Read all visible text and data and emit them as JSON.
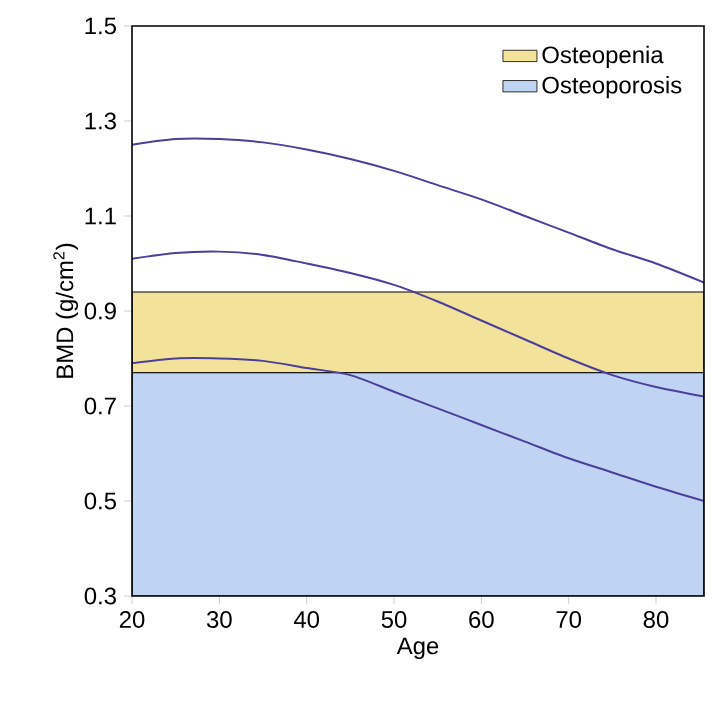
{
  "chart_data": {
    "type": "line",
    "xlabel": "Age",
    "ylabel": "BMD (g/cm$^{2}$)",
    "xlim": [
      20,
      85.5
    ],
    "ylim": [
      0.3,
      1.5
    ],
    "xticks": [
      20,
      30,
      40,
      50,
      60,
      70,
      80
    ],
    "yticks": [
      0.3,
      0.5,
      0.7,
      0.9,
      1.1,
      1.3,
      1.5
    ],
    "x": [
      20,
      25,
      30,
      35,
      40,
      45,
      50,
      55,
      60,
      65,
      70,
      75,
      80,
      85.5
    ],
    "series": [
      {
        "color": "#4b3f9a",
        "values": [
          1.25,
          1.262,
          1.262,
          1.255,
          1.24,
          1.22,
          1.195,
          1.165,
          1.135,
          1.1,
          1.065,
          1.03,
          1.0,
          0.96
        ]
      },
      {
        "color": "#4b3f9a",
        "values": [
          1.01,
          1.022,
          1.025,
          1.018,
          1.0,
          0.98,
          0.955,
          0.92,
          0.88,
          0.84,
          0.8,
          0.765,
          0.74,
          0.72
        ]
      },
      {
        "color": "#4b3f9a",
        "values": [
          0.79,
          0.8,
          0.8,
          0.795,
          0.78,
          0.765,
          0.73,
          0.695,
          0.66,
          0.625,
          0.59,
          0.56,
          0.53,
          0.5
        ]
      }
    ],
    "bands": [
      {
        "axis": "y",
        "from": 0.77,
        "to": 0.94,
        "label": "Osteopenia",
        "color": "#f3e39a"
      },
      {
        "axis": "y",
        "from": 0.3,
        "to": 0.77,
        "label": "Osteoporosis",
        "color": "#bfd4f2"
      }
    ],
    "legend": "top right",
    "grid": false,
    "marker": "none",
    "line_style": "solid"
  }
}
